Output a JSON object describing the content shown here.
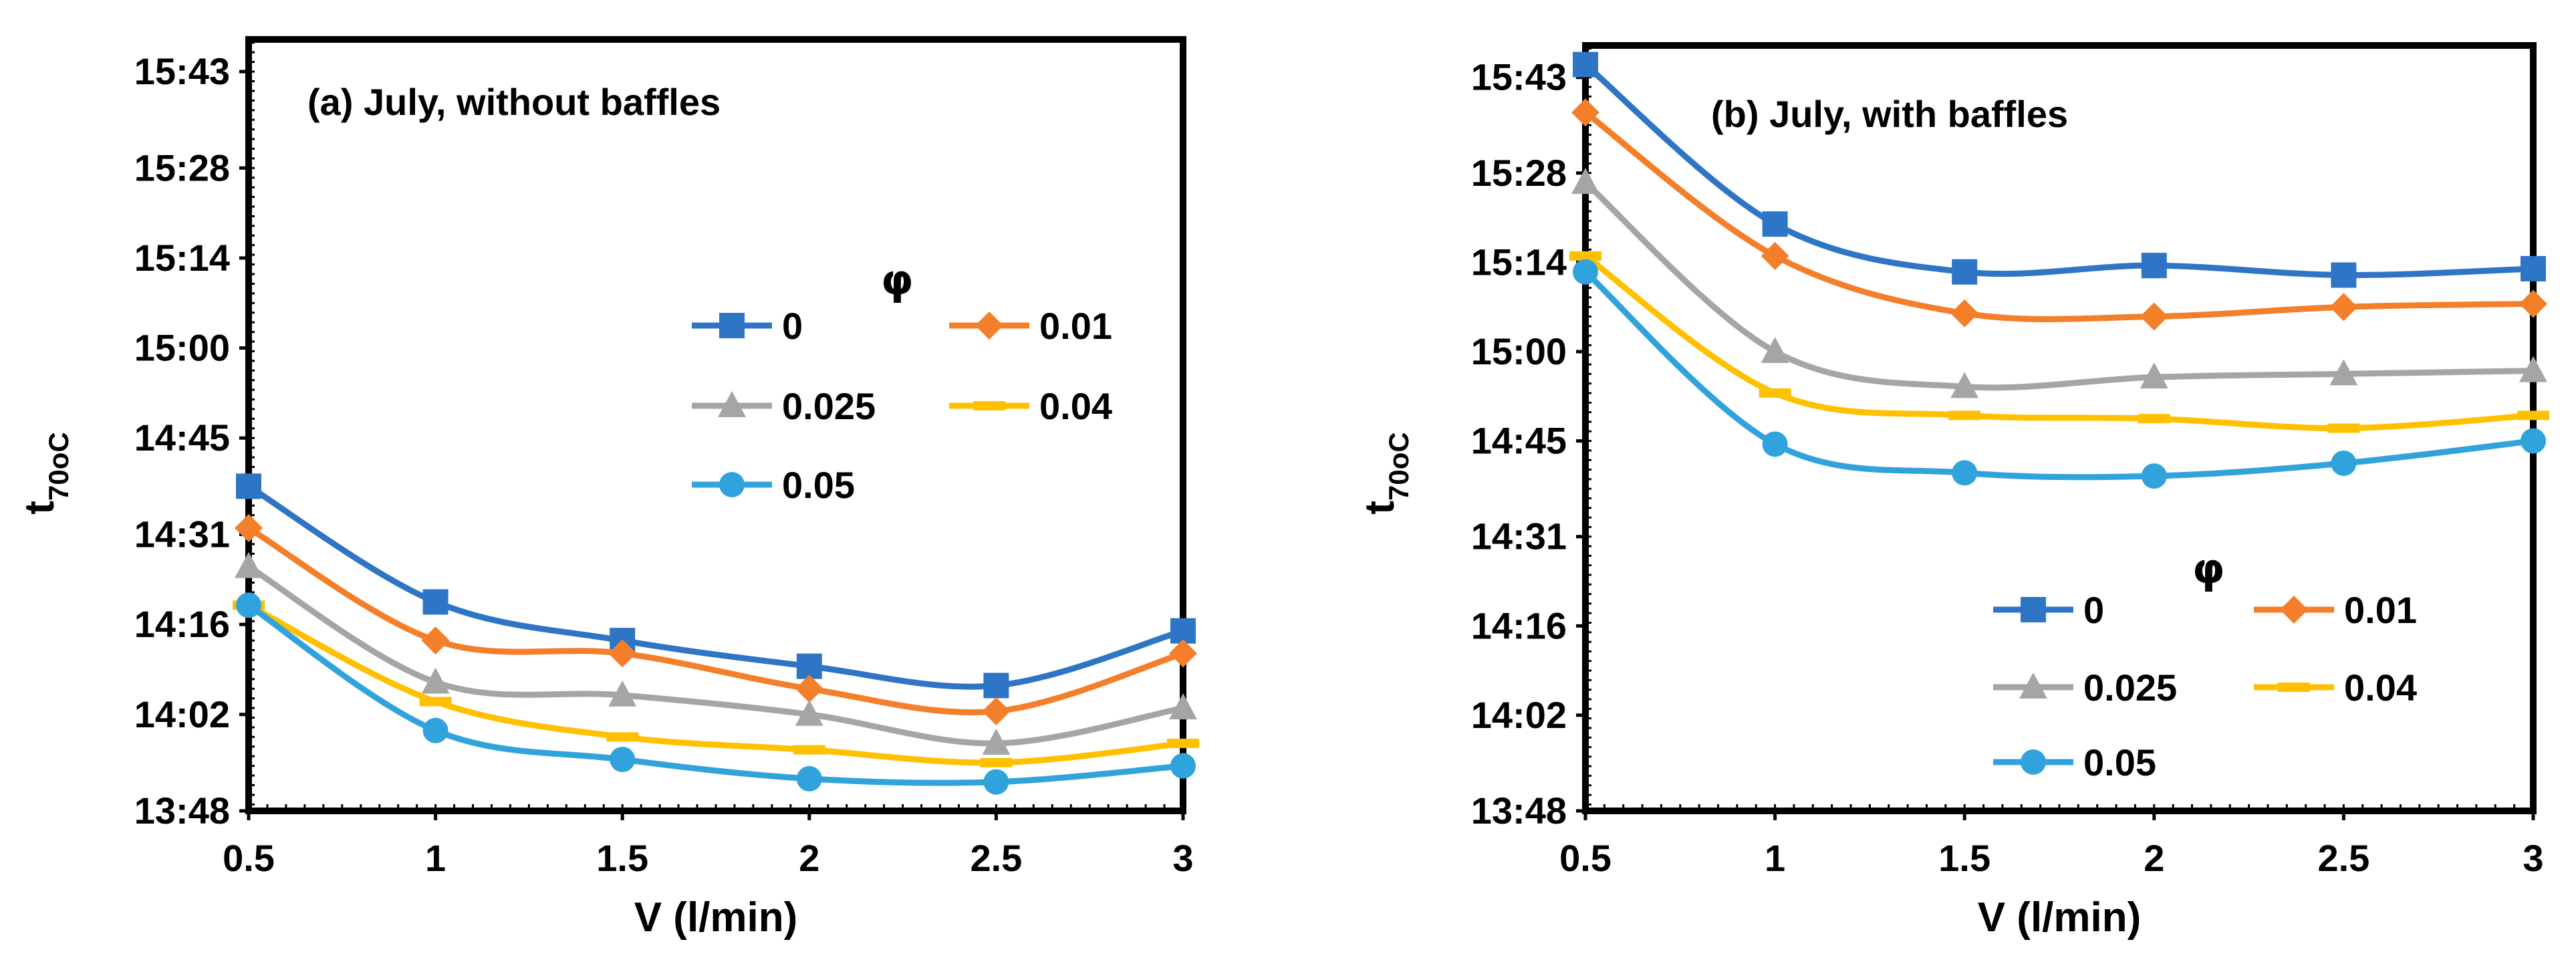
{
  "legend_title": "φ",
  "series_colors": {
    "0": "#2e75c6",
    "0.01": "#f47f2a",
    "0.025": "#a5a5a5",
    "0.04": "#ffc000",
    "0.05": "#31a3dc"
  },
  "chart_data": [
    {
      "type": "line",
      "title": "(a) July, without baffles",
      "xlabel": "V (l/min)",
      "ylabel": "t",
      "ylabel_sub": "70oC",
      "x": [
        0.5,
        1,
        1.5,
        2,
        2.5,
        3
      ],
      "x_tick_labels": [
        "0.5",
        "1",
        "1.5",
        "2",
        "2.5",
        "3"
      ],
      "xlim": [
        0.5,
        3
      ],
      "ylim_minutes": [
        828,
        948
      ],
      "y_tick_minutes": [
        828,
        843,
        857,
        871,
        886,
        900,
        914,
        928,
        943
      ],
      "y_tick_labels": [
        "13:48",
        "14:02",
        "14:16",
        "14:31",
        "14:45",
        "15:00",
        "15:14",
        "15:28",
        "15:43"
      ],
      "series": [
        {
          "name": "0",
          "marker": "square",
          "values_minutes": [
            878.5,
            860.5,
            854.5,
            850.5,
            847.5,
            856.0
          ]
        },
        {
          "name": "0.01",
          "marker": "diamond",
          "values_minutes": [
            872.0,
            854.5,
            852.5,
            847.0,
            843.5,
            852.5
          ]
        },
        {
          "name": "0.025",
          "marker": "triangle",
          "values_minutes": [
            866.0,
            848.0,
            846.0,
            843.0,
            838.5,
            844.0
          ]
        },
        {
          "name": "0.04",
          "marker": "dash",
          "values_minutes": [
            860.0,
            845.0,
            839.5,
            837.5,
            835.5,
            838.5
          ]
        },
        {
          "name": "0.05",
          "marker": "circle",
          "values_minutes": [
            860.0,
            840.5,
            836.0,
            833.0,
            832.5,
            835.0
          ]
        }
      ]
    },
    {
      "type": "line",
      "title": "(b) July, with baffles",
      "xlabel": "V (l/min)",
      "ylabel": "t",
      "ylabel_sub": "70oC",
      "x": [
        0.5,
        1,
        1.5,
        2,
        2.5,
        3
      ],
      "x_tick_labels": [
        "0.5",
        "1",
        "1.5",
        "2",
        "2.5",
        "3"
      ],
      "xlim": [
        0.5,
        3
      ],
      "ylim_minutes": [
        828,
        948
      ],
      "y_tick_minutes": [
        828,
        843,
        857,
        871,
        886,
        900,
        914,
        928,
        943
      ],
      "y_tick_labels": [
        "13:48",
        "14:02",
        "14:16",
        "14:31",
        "14:45",
        "15:00",
        "15:14",
        "15:28",
        "15:43"
      ],
      "series": [
        {
          "name": "0",
          "marker": "square",
          "values_minutes": [
            945.0,
            920.0,
            912.5,
            913.5,
            912.0,
            913.0
          ]
        },
        {
          "name": "0.01",
          "marker": "diamond",
          "values_minutes": [
            937.5,
            915.0,
            906.0,
            905.5,
            907.0,
            907.5
          ]
        },
        {
          "name": "0.025",
          "marker": "triangle",
          "values_minutes": [
            926.5,
            900.0,
            894.5,
            896.0,
            896.5,
            897.0
          ]
        },
        {
          "name": "0.04",
          "marker": "dash",
          "values_minutes": [
            915.0,
            893.5,
            890.0,
            889.5,
            888.0,
            890.0
          ]
        },
        {
          "name": "0.05",
          "marker": "circle",
          "values_minutes": [
            912.5,
            885.5,
            881.0,
            880.5,
            882.5,
            886.0
          ]
        }
      ]
    }
  ]
}
